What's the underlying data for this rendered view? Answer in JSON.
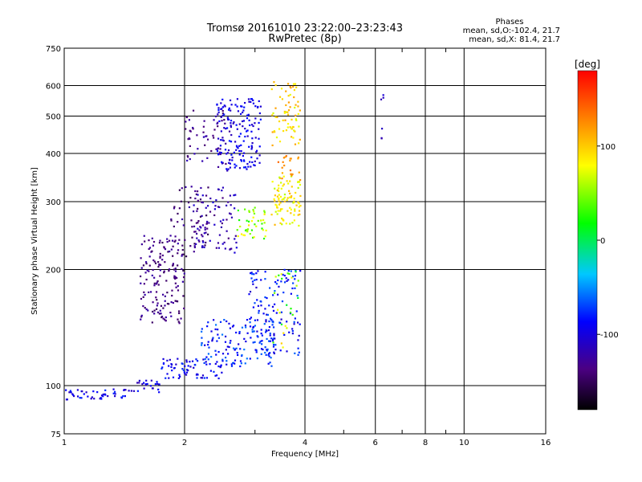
{
  "chart_data": {
    "type": "scatter",
    "title": "Tromsø 20161010 23:22:00–23:23:43",
    "subtitle": "RwPretec (8p)",
    "xlabel": "Frequency [MHz]",
    "ylabel": "Stationary phase Virtual Height [km]",
    "x_scale": "log",
    "y_scale": "log",
    "xlim": [
      1,
      16
    ],
    "ylim": [
      75,
      750
    ],
    "x_ticks": [
      1,
      2,
      4,
      6,
      8,
      10,
      16
    ],
    "y_ticks": [
      75,
      100,
      200,
      300,
      400,
      500,
      600,
      750
    ],
    "grid": true,
    "phase_stats": {
      "heading": "Phases",
      "line_o": "mean, sd,O:-102.4, 21.7",
      "line_x": "mean, sd,X: 81.4, 21.7"
    },
    "colorbar": {
      "label": "[deg]",
      "range": [
        -180,
        180
      ],
      "ticks": [
        100,
        0,
        -100
      ],
      "tick_labels": [
        "100",
        "0",
        "-100"
      ]
    },
    "series": [
      {
        "clusters": [
          {
            "x": [
              1.0,
              1.45
            ],
            "y": [
              92,
              98
            ],
            "phase": [
              -115,
              -75
            ],
            "n": 45
          },
          {
            "x": [
              1.45,
              1.75
            ],
            "y": [
              96,
              104
            ],
            "phase": [
              -120,
              -80
            ],
            "n": 25
          },
          {
            "x": [
              1.75,
              2.5
            ],
            "y": [
              104,
              118
            ],
            "phase": [
              -110,
              -70
            ],
            "n": 70
          },
          {
            "x": [
              2.2,
              3.4
            ],
            "y": [
              112,
              150
            ],
            "phase": [
              -105,
              -55
            ],
            "n": 140
          },
          {
            "x": [
              2.9,
              3.9
            ],
            "y": [
              120,
              200
            ],
            "phase": [
              -110,
              -60
            ],
            "n": 120
          },
          {
            "x": [
              3.3,
              3.9
            ],
            "y": [
              125,
              200
            ],
            "phase": [
              5,
              100
            ],
            "n": 25
          },
          {
            "x": [
              1.55,
              2.0
            ],
            "y": [
              145,
              245
            ],
            "phase": [
              -150,
              -120
            ],
            "n": 160
          },
          {
            "x": [
              1.85,
              2.3
            ],
            "y": [
              215,
              330
            ],
            "phase": [
              -155,
              -120
            ],
            "n": 60
          },
          {
            "x": [
              2.1,
              2.7
            ],
            "y": [
              220,
              330
            ],
            "phase": [
              -140,
              -100
            ],
            "n": 80
          },
          {
            "x": [
              2.7,
              3.2
            ],
            "y": [
              240,
              290
            ],
            "phase": [
              20,
              90
            ],
            "n": 45
          },
          {
            "x": [
              3.3,
              3.9
            ],
            "y": [
              260,
              350
            ],
            "phase": [
              60,
              110
            ],
            "n": 90
          },
          {
            "x": [
              2.0,
              2.6
            ],
            "y": [
              360,
              520
            ],
            "phase": [
              -145,
              -115
            ],
            "n": 60
          },
          {
            "x": [
              2.4,
              3.1
            ],
            "y": [
              360,
              560
            ],
            "phase": [
              -115,
              -80
            ],
            "n": 160
          },
          {
            "x": [
              3.3,
              3.9
            ],
            "y": [
              420,
              620
            ],
            "phase": [
              70,
              120
            ],
            "n": 70
          },
          {
            "x": [
              3.4,
              3.9
            ],
            "y": [
              340,
              400
            ],
            "phase": [
              110,
              140
            ],
            "n": 20
          },
          {
            "x": [
              6.2,
              6.3
            ],
            "y": [
              400,
              590
            ],
            "phase": [
              -120,
              -100
            ],
            "n": 6
          }
        ]
      }
    ]
  }
}
